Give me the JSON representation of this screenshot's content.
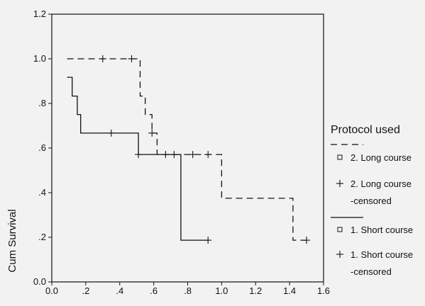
{
  "chart_data": {
    "type": "line",
    "title": "",
    "xlabel": "",
    "ylabel": "Cum Survival",
    "xlim": [
      0.0,
      1.6
    ],
    "ylim": [
      0.0,
      1.2
    ],
    "x_ticks": [
      "0.0",
      ".2",
      ".4",
      ".6",
      ".8",
      "1.0",
      "1.2",
      "1.4",
      "1.6"
    ],
    "y_ticks": [
      "0.0",
      ".2",
      ".4",
      ".6",
      ".8",
      "1.0",
      "1.2"
    ],
    "step": true,
    "grid": false,
    "legend_position": "right",
    "legend_title": "Protocol used",
    "legend_entries": [
      {
        "label": "2. Long course",
        "symbol": "square",
        "line": "dashed"
      },
      {
        "label": "2. Long course",
        "label2": "-censored",
        "symbol": "plus"
      },
      {
        "label": "1. Short course",
        "symbol": "square",
        "line": "solid"
      },
      {
        "label": "1. Short course",
        "label2": "-censored",
        "symbol": "plus"
      }
    ],
    "series": [
      {
        "name": "2. Long course",
        "style": "dashed",
        "steps": [
          [
            0.09,
            1.0
          ],
          [
            0.52,
            0.833
          ],
          [
            0.55,
            0.75
          ],
          [
            0.59,
            0.667
          ],
          [
            0.62,
            0.571
          ],
          [
            1.0,
            0.375
          ],
          [
            1.42,
            0.187
          ],
          [
            1.5,
            0.187
          ]
        ],
        "censored": [
          [
            0.3,
            1.0
          ],
          [
            0.47,
            1.0
          ],
          [
            0.59,
            0.667
          ],
          [
            0.67,
            0.571
          ],
          [
            0.83,
            0.571
          ],
          [
            0.92,
            0.571
          ],
          [
            1.5,
            0.187
          ]
        ]
      },
      {
        "name": "1. Short course",
        "style": "solid",
        "steps": [
          [
            0.09,
            0.917
          ],
          [
            0.12,
            0.833
          ],
          [
            0.15,
            0.75
          ],
          [
            0.17,
            0.667
          ],
          [
            0.51,
            0.571
          ],
          [
            0.76,
            0.187
          ],
          [
            0.92,
            0.187
          ]
        ],
        "censored": [
          [
            0.35,
            0.667
          ],
          [
            0.51,
            0.571
          ],
          [
            0.72,
            0.571
          ],
          [
            0.92,
            0.187
          ]
        ]
      }
    ]
  }
}
